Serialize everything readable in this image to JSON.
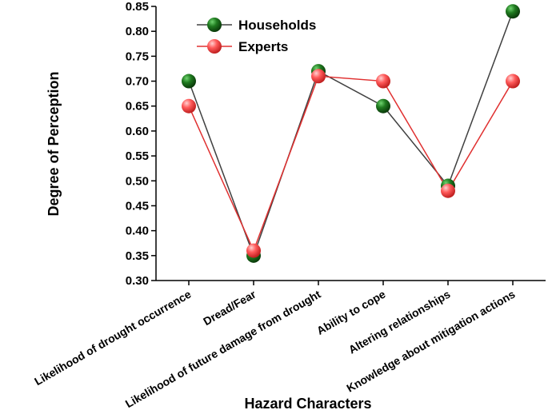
{
  "chart_data": {
    "type": "line",
    "title": "",
    "xlabel": "Hazard Characters",
    "ylabel": "Degree of Perception",
    "ylim": [
      0.3,
      0.85
    ],
    "yticks": [
      "0.30",
      "0.35",
      "0.40",
      "0.45",
      "0.50",
      "0.55",
      "0.60",
      "0.65",
      "0.70",
      "0.75",
      "0.80",
      "0.85"
    ],
    "categories": [
      "Likelihood of drought occurrence",
      "Dread/Fear",
      "Likelihood of future damage from drought",
      "Ability to cope",
      "Altering relationships",
      "Knowledge about mitigation actions"
    ],
    "series": [
      {
        "name": "Households",
        "values": [
          0.7,
          0.35,
          0.72,
          0.65,
          0.49,
          0.84
        ],
        "line_color": "#404040",
        "marker_color": "#1a6b1a"
      },
      {
        "name": "Experts",
        "values": [
          0.65,
          0.36,
          0.71,
          0.7,
          0.48,
          0.7
        ],
        "line_color": "#e03030",
        "marker_color": "#ff5a5a"
      }
    ],
    "legend_position": "top-left",
    "grid": false
  }
}
